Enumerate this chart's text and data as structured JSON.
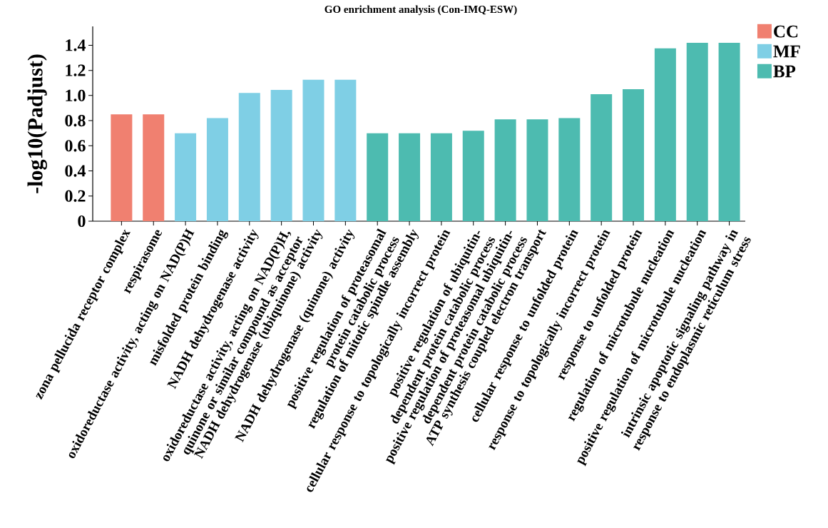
{
  "chart_data": {
    "type": "bar",
    "title": "GO enrichment analysis (Con-IMQ-ESW)",
    "ylabel": "-log10(Padjust)",
    "categories": [
      "zona pellucida receptor complex",
      "respirasome",
      "oxidoreductase activity, acting on NAD(P)H",
      "misfolded protein binding",
      "NADH dehydrogenase activity",
      "oxidoreductase activity, acting on NAD(P)H, quinone or similar compound as acceptor",
      "NADH dehydrogenase (ubiquinone) activity",
      "NADH dehydrogenase (quinone) activity",
      "positive regulation of proteasomal protein catabolic process",
      "regulation of mitotic spindle assembly",
      "cellular response to topologically incorrect protein",
      "positive regulation of ubiquitin-dependent protein catabolic process",
      "positive regulation of proteasomal ubiquitin-dependent protein catabolic process",
      "ATP synthesis coupled electron transport",
      "cellular response to unfolded protein",
      "response to topologically incorrect protein",
      "response to unfolded protein",
      "regulation of microtubule nucleation",
      "positive regulation of microtubule nucleation",
      "intrinsic apoptotic signaling pathway in response to endoplasmic reticulum stress"
    ],
    "series": [
      {
        "name": "CC",
        "color": "#f08070",
        "values": [
          0.85,
          0.85,
          null,
          null,
          null,
          null,
          null,
          null,
          null,
          null,
          null,
          null,
          null,
          null,
          null,
          null,
          null,
          null,
          null,
          null
        ]
      },
      {
        "name": "MF",
        "color": "#7fcfe5",
        "values": [
          null,
          null,
          0.7,
          0.82,
          1.02,
          1.045,
          1.125,
          1.125,
          null,
          null,
          null,
          null,
          null,
          null,
          null,
          null,
          null,
          null,
          null,
          null
        ]
      },
      {
        "name": "BP",
        "color": "#4dbbb0",
        "values": [
          null,
          null,
          null,
          null,
          null,
          null,
          null,
          null,
          0.7,
          0.7,
          0.7,
          0.72,
          0.81,
          0.81,
          0.82,
          1.01,
          1.05,
          1.375,
          1.42,
          1.42
        ]
      }
    ],
    "ylim": [
      0,
      1.55
    ],
    "yticks": [
      0,
      {
        "value": 0.2,
        "label": "0.2"
      },
      {
        "value": 0.4,
        "label": "0.4"
      },
      {
        "value": 0.6,
        "label": "0.6"
      },
      {
        "value": 0.8,
        "label": "0.8"
      },
      {
        "value": 1.0,
        "label": "1.0"
      },
      {
        "value": 1.2,
        "label": "1.2"
      },
      {
        "value": 1.4,
        "label": "1.4"
      }
    ],
    "legend": "top right",
    "grid": false
  }
}
